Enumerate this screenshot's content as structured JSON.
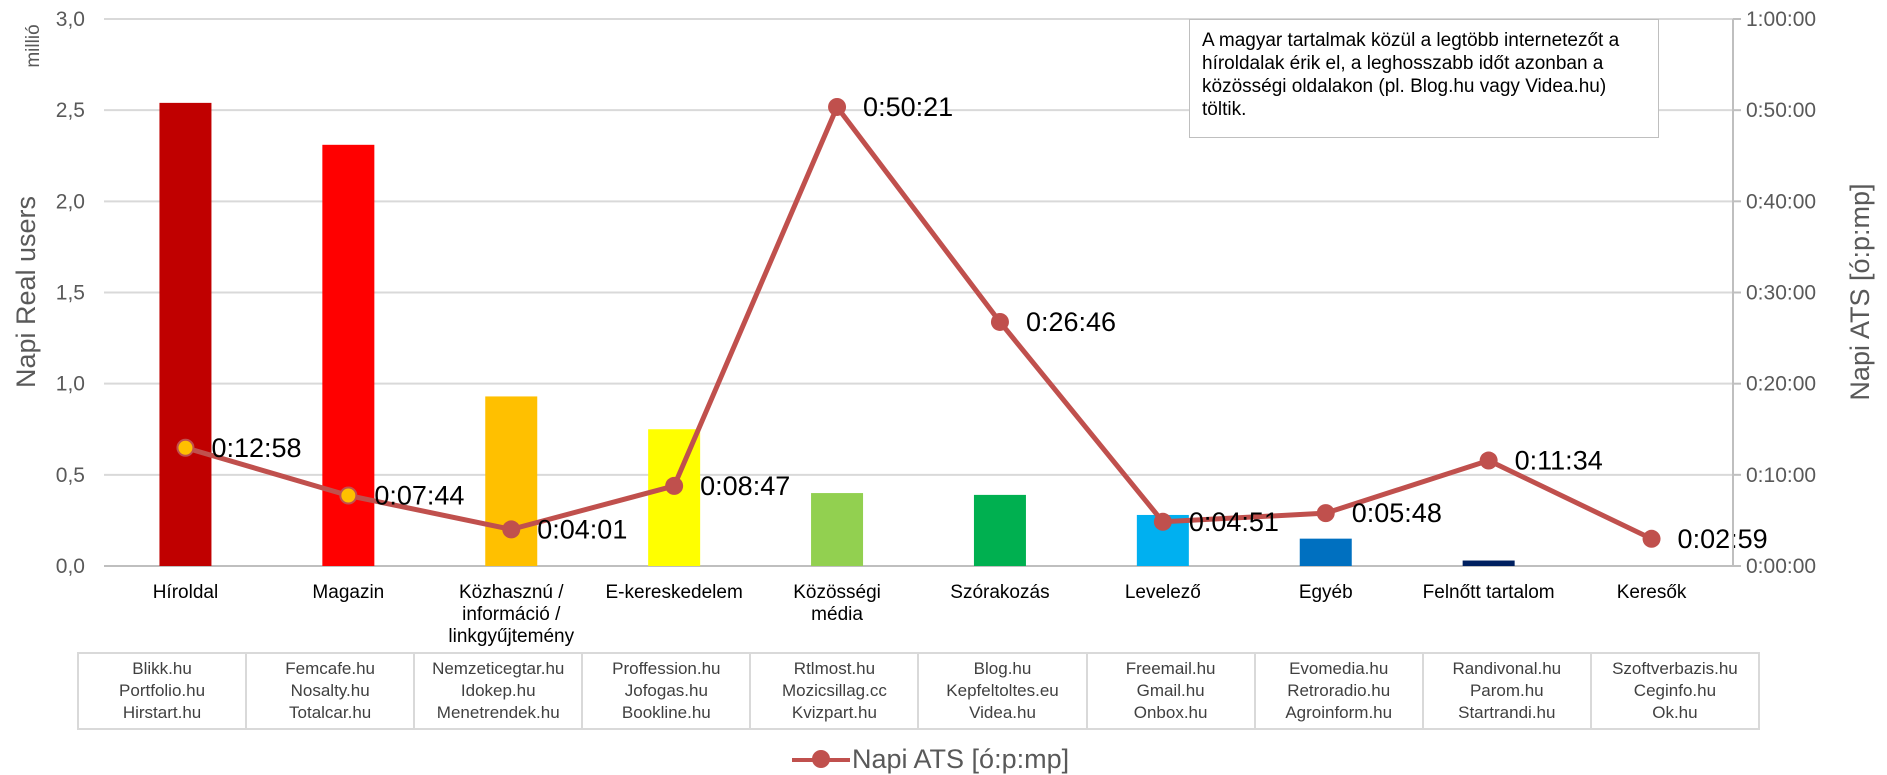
{
  "chart_data": {
    "type": "bar+line",
    "categories": [
      "Híroldal",
      "Magazin",
      "Közhasznú / információ / linkgyűjtemény",
      "E-kereskedelem",
      "Közösségi média",
      "Szórakozás",
      "Levelező",
      "Egyéb",
      "Felnőtt tartalom",
      "Keresők"
    ],
    "category_labels": [
      [
        "Híroldal"
      ],
      [
        "Magazin"
      ],
      [
        "Közhasznú /",
        "információ /",
        "linkgyűjtemény"
      ],
      [
        "E-kereskedelem"
      ],
      [
        "Közösségi",
        "média"
      ],
      [
        "Szórakozás"
      ],
      [
        "Levelező"
      ],
      [
        "Egyéb"
      ],
      [
        "Felnőtt tartalom"
      ],
      [
        "Keresők"
      ]
    ],
    "bar_series": {
      "values": [
        2.54,
        2.31,
        0.93,
        0.75,
        0.4,
        0.39,
        0.28,
        0.15,
        0.03,
        0.0
      ],
      "colors": [
        "#c00000",
        "#ff0000",
        "#ffc000",
        "#ffff00",
        "#92d050",
        "#00b050",
        "#00b0f0",
        "#0070c0",
        "#002060",
        "#7030a0"
      ]
    },
    "line_series": {
      "name": "Napi ATS [ó:p:mp]",
      "values": [
        "0:12:58",
        "0:07:44",
        "0:04:01",
        "0:08:47",
        "0:50:21",
        "0:26:46",
        "0:04:51",
        "0:05:48",
        "0:11:34",
        "0:02:59"
      ],
      "color": "#c0504d",
      "highlight_color": "#ffc000"
    },
    "y_left": {
      "label": "Napi Real users",
      "unit": "millió",
      "ylim": [
        0,
        3.0
      ],
      "ticks": [
        "0,0",
        "0,5",
        "1,0",
        "1,5",
        "2,0",
        "2,5",
        "3,0"
      ]
    },
    "y_right": {
      "label": "Napi ATS [ó:p:mp]",
      "ylim": [
        "0:00:00",
        "1:00:00"
      ],
      "ticks": [
        "0:00:00",
        "0:10:00",
        "0:20:00",
        "0:30:00",
        "0:40:00",
        "0:50:00",
        "1:00:00"
      ]
    },
    "grid": true,
    "legend": "bottom-center",
    "annotation": "A magyar tartalmak közül a legtöbb internetezőt a híroldalak érik el, a leghosszabb időt azonban a közösségi oldalakon (pl. Blog.hu vagy Videa.hu) töltik."
  },
  "sites_table": [
    [
      "Blikk.hu",
      "Portfolio.hu",
      "Hirstart.hu"
    ],
    [
      "Femcafe.hu",
      "Nosalty.hu",
      "Totalcar.hu"
    ],
    [
      "Nemzeticegtar.hu",
      "Idokep.hu",
      "Menetrendek.hu"
    ],
    [
      "Proffession.hu",
      "Jofogas.hu",
      "Bookline.hu"
    ],
    [
      "Rtlmost.hu",
      "Mozicsillag.cc",
      "Kvizpart.hu"
    ],
    [
      "Blog.hu",
      "Kepfeltoltes.eu",
      "Videa.hu"
    ],
    [
      "Freemail.hu",
      "Gmail.hu",
      "Onbox.hu"
    ],
    [
      "Evomedia.hu",
      "Retroradio.hu",
      "Agroinform.hu"
    ],
    [
      "Randivonal.hu",
      "Parom.hu",
      "Startrandi.hu"
    ],
    [
      "Szoftverbazis.hu",
      "Ceginfo.hu",
      "Ok.hu"
    ]
  ]
}
